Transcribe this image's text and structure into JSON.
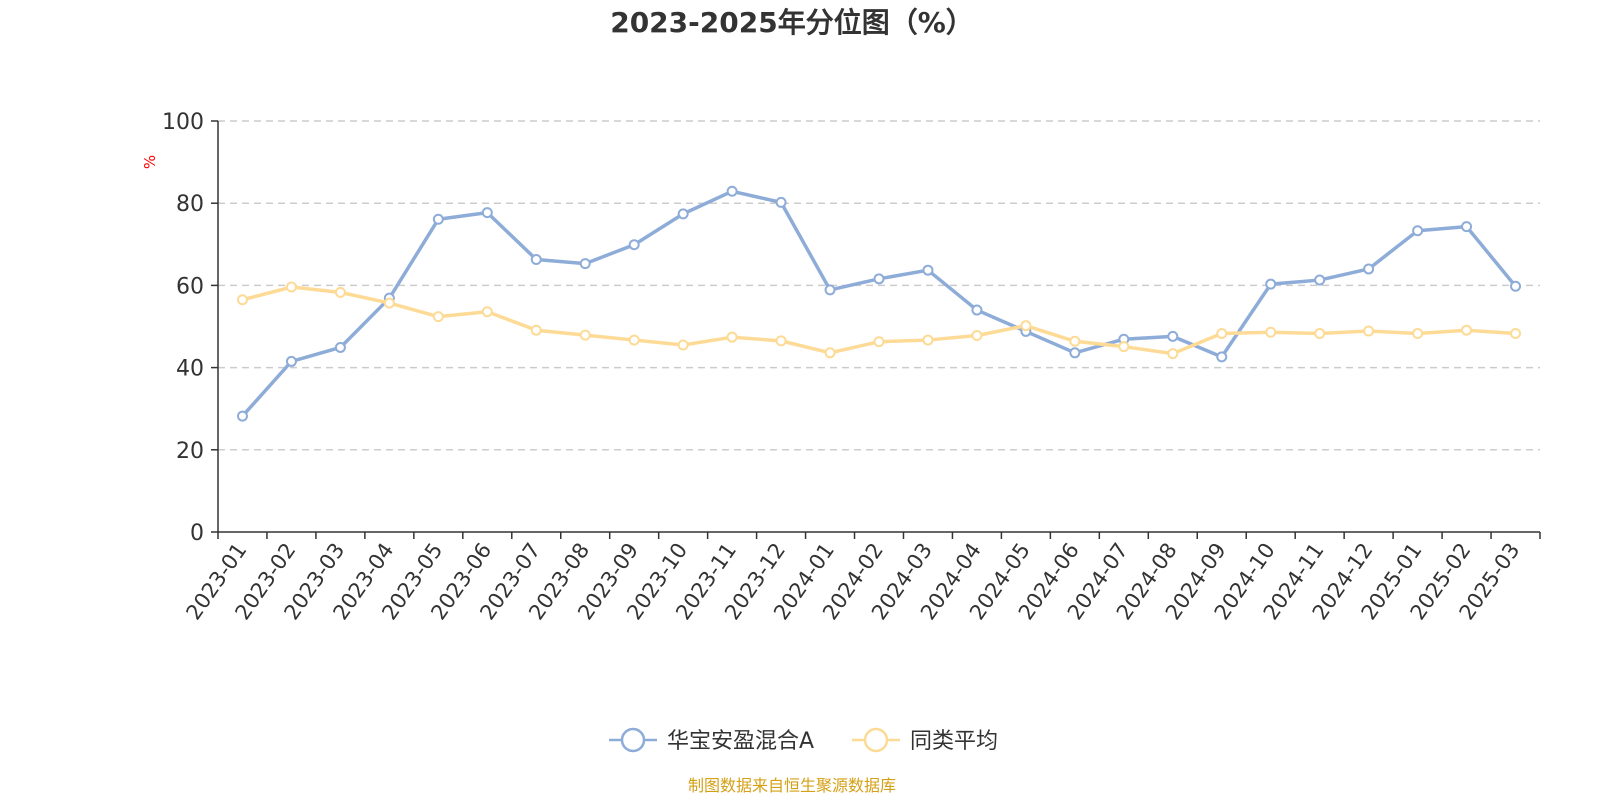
{
  "chart_data": {
    "type": "line",
    "title": "2023-2025年分位图（%）",
    "ylabel": "%",
    "ylim": [
      0,
      100
    ],
    "yticks": [
      "0",
      "20",
      "40",
      "60",
      "80",
      "100"
    ],
    "grid": true,
    "legend_position": "bottom",
    "categories": [
      "2023-01",
      "2023-02",
      "2023-03",
      "2023-04",
      "2023-05",
      "2023-06",
      "2023-07",
      "2023-08",
      "2023-09",
      "2023-10",
      "2023-11",
      "2023-12",
      "2024-01",
      "2024-02",
      "2024-03",
      "2024-04",
      "2024-05",
      "2024-06",
      "2024-07",
      "2024-08",
      "2024-09",
      "2024-10",
      "2024-11",
      "2024-12",
      "2025-01",
      "2025-02",
      "2025-03"
    ],
    "series": [
      {
        "name": "华宝安盈混合A",
        "color": "#8eacd8",
        "values": [
          28.2,
          41.5,
          44.9,
          56.9,
          76.1,
          77.7,
          66.3,
          65.3,
          69.9,
          77.4,
          82.9,
          80.2,
          58.9,
          61.6,
          63.7,
          54.0,
          48.8,
          43.6,
          46.9,
          47.6,
          42.6,
          60.3,
          61.3,
          64.0,
          73.3,
          74.3,
          59.8
        ]
      },
      {
        "name": "同类平均",
        "color": "#fddb96",
        "values": [
          56.5,
          59.6,
          58.3,
          55.7,
          52.4,
          53.6,
          49.1,
          47.9,
          46.7,
          45.5,
          47.4,
          46.5,
          43.6,
          46.3,
          46.7,
          47.8,
          50.2,
          46.4,
          45.1,
          43.4,
          48.3,
          48.6,
          48.3,
          48.9,
          48.3,
          49.1,
          48.3
        ]
      }
    ]
  },
  "source_text": "制图数据来自恒生聚源数据库",
  "colors": {
    "axis": "#333333",
    "grid": "#cccccc",
    "unit": "#ff0000",
    "source": "#d4a017"
  }
}
